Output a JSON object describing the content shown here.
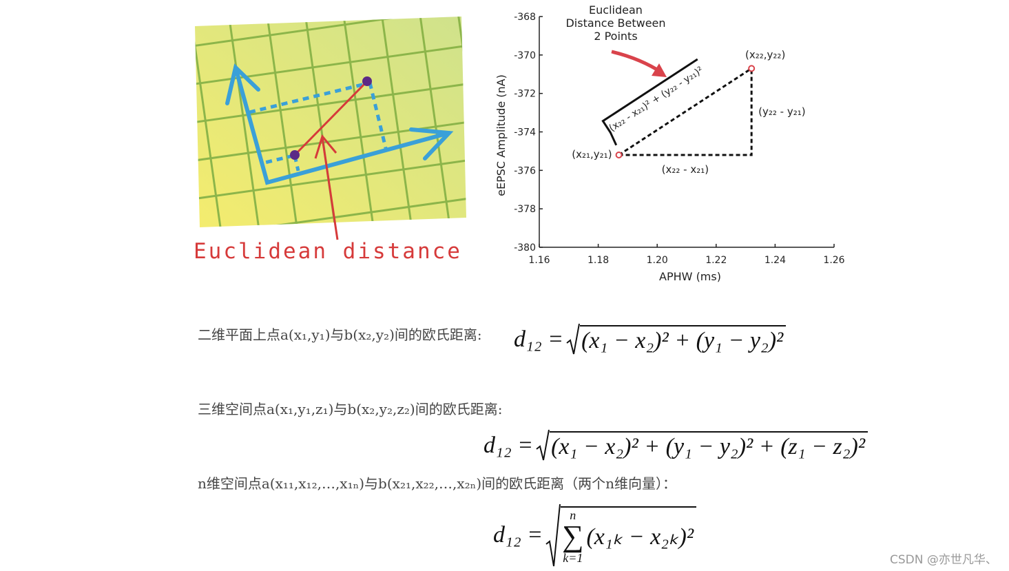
{
  "illustration": {
    "label": "Euclidean distance"
  },
  "chart_data": {
    "type": "scatter",
    "annotation_lines": [
      "Euclidean",
      "Distance Between",
      "2 Points"
    ],
    "x_label": "APHW (ms)",
    "y_label": "eEPSC Amplitude (nA)",
    "x": [
      1.187,
      1.232
    ],
    "values": [
      -375.2,
      -370.7
    ],
    "color": "#d9434b",
    "point_labels": [
      "(x₂₁,y₂₁)",
      "(x₂₂,y₂₂)"
    ],
    "dx_label": "(x₂₂ - x₂₁)",
    "dy_label": "(y₂₂ - y₂₁)",
    "distance_label": "(x₂₂ - x₂₁)² + (y₂₂ - y₂₁)²",
    "xlim": [
      1.16,
      1.26
    ],
    "xticks": [
      1.16,
      1.18,
      {
        "value": 1.2,
        "label": "1.20"
      },
      1.22,
      1.24,
      1.26
    ],
    "ylim": [
      -380,
      -368
    ],
    "yticks": [
      -368,
      -370,
      -372,
      -374,
      -376,
      -378,
      -380
    ]
  },
  "formulas": [
    {
      "description": "二维平面上点a(x₁,y₁)与b(x₂,y₂)间的欧氏距离:",
      "lhs": "d₁₂ =",
      "radicand": "(x₁ − x₂)² + (y₁ − y₂)²"
    },
    {
      "description": "三维空间点a(x₁,y₁,z₁)与b(x₂,y₂,z₂)间的欧氏距离:",
      "lhs": "d₁₂ =",
      "radicand": "(x₁ − x₂)² + (y₁ − y₂)² + (z₁ − z₂)²"
    },
    {
      "description": "n维空间点a(x₁₁,x₁₂,…,x₁ₙ)与b(x₂₁,x₂₂,…,x₂ₙ)间的欧氏距离（两个n维向量）：",
      "lhs": "d₁₂ =",
      "sum_upper": "n",
      "sum_symbol": "∑",
      "sum_lower": "k=1",
      "radicand": "(x₁ₖ − x₂ₖ)²"
    }
  ],
  "watermark": "CSDN @亦世凡华、"
}
